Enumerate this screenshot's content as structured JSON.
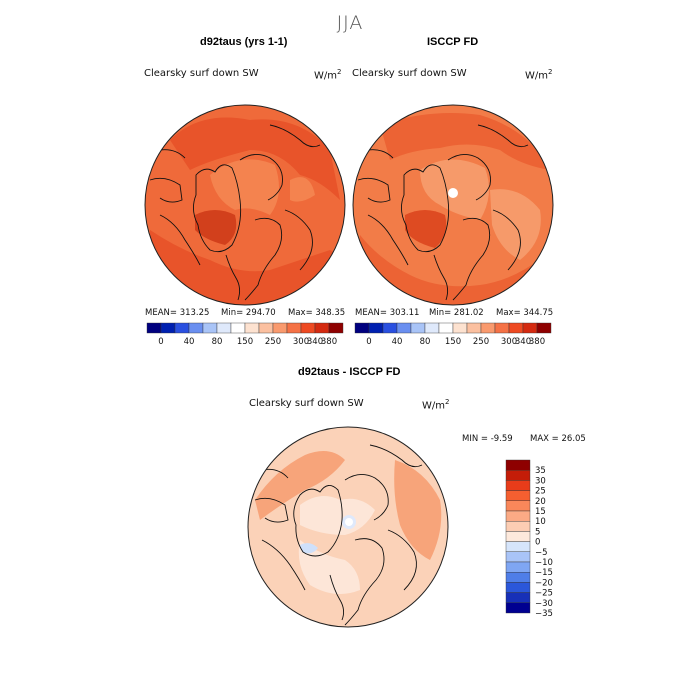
{
  "title": "JJA",
  "left_panel": {
    "title": "d92taus (yrs 1-1)",
    "variable": "Clearsky surf down SW",
    "units": "W/m",
    "units_exp": "2",
    "stats": {
      "mean": "MEAN= 313.25",
      "min": "Min= 294.70",
      "max": "Max= 348.35"
    }
  },
  "right_panel": {
    "title": "ISCCP FD",
    "variable": "Clearsky surf down SW",
    "units": "W/m",
    "units_exp": "2",
    "stats": {
      "mean": "MEAN= 303.11",
      "min": "Min= 281.02",
      "max": "Max= 344.75"
    }
  },
  "diff_panel": {
    "title": "d92taus - ISCCP FD",
    "variable": "Clearsky surf down SW",
    "units": "W/m",
    "units_exp": "2",
    "stats": {
      "min": "MIN =  -9.59",
      "max": "MAX =  26.05"
    }
  },
  "abs_colorbar": {
    "ticks": [
      "0",
      "40",
      "80",
      "150",
      "250",
      "300",
      "340",
      "380"
    ],
    "colors": [
      "#00007f",
      "#0020b0",
      "#2a50e0",
      "#6a8ff0",
      "#a9c4f7",
      "#dfe9fb",
      "#ffffff",
      "#fde2d0",
      "#fbc0a0",
      "#f99a6e",
      "#f57246",
      "#ee4a22",
      "#d42a10",
      "#8e0000"
    ]
  },
  "diff_colorbar": {
    "labels": [
      "35",
      "30",
      "25",
      "20",
      "15",
      "10",
      "5",
      "0",
      "−5",
      "−10",
      "−15",
      "−20",
      "−25",
      "−30",
      "−35"
    ],
    "colors": [
      "#8e0000",
      "#c41d08",
      "#e83c1a",
      "#f55f30",
      "#f9875a",
      "#fbaa85",
      "#fccdb3",
      "#fde9dc",
      "#d6e5fb",
      "#a9c4f7",
      "#7fa6f3",
      "#4f7ee8",
      "#2b57da",
      "#1730b8",
      "#000090"
    ]
  },
  "map_colors": {
    "left_base": "#ef6a3a",
    "left_high": "#e8542a",
    "left_low": "#f4834f",
    "right_base": "#f27c48",
    "right_high": "#ec6334",
    "right_low": "#f69a6a",
    "diff_base": "#fbd2b8",
    "diff_high": "#f7a47a",
    "diff_low": "#fde6d8",
    "diff_neg": "#cfe0fa"
  }
}
